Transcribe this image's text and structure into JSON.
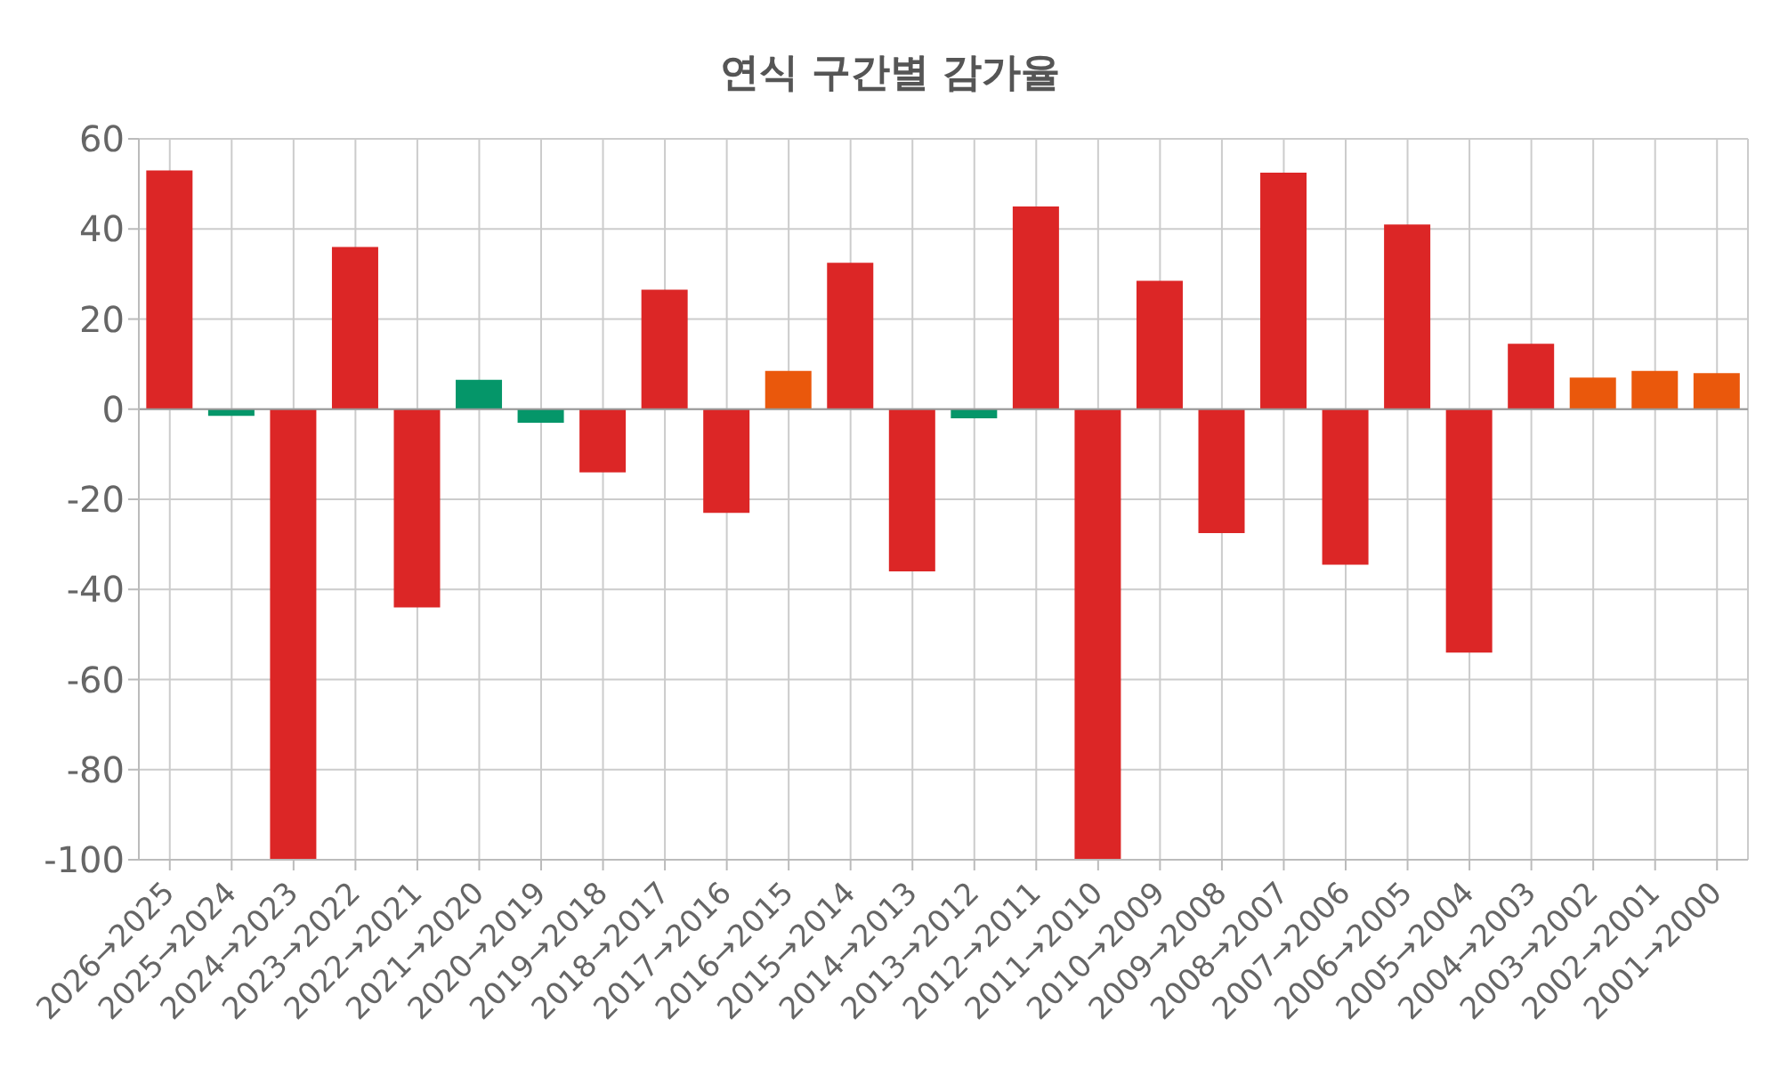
{
  "chart_data": {
    "type": "bar",
    "title": "연식 구간별 감가율",
    "categories": [
      "2026→2025",
      "2025→2024",
      "2024→2023",
      "2023→2022",
      "2022→2021",
      "2021→2020",
      "2020→2019",
      "2019→2018",
      "2018→2017",
      "2017→2016",
      "2016→2015",
      "2015→2014",
      "2014→2013",
      "2013→2012",
      "2012→2011",
      "2011→2010",
      "2010→2009",
      "2009→2008",
      "2008→2007",
      "2007→2006",
      "2006→2005",
      "2005→2004",
      "2004→2003",
      "2003→2002",
      "2002→2001",
      "2001→2000"
    ],
    "values": [
      53,
      -1.5,
      -100,
      36,
      -44,
      6.5,
      -3,
      -14,
      26.5,
      -23,
      8.5,
      32.5,
      -36,
      -2,
      45,
      -100,
      28.5,
      -27.5,
      52.5,
      -34.5,
      41,
      -54,
      14.5,
      7,
      8.5,
      8
    ],
    "colors": [
      "#dc2626",
      "#059669",
      "#dc2626",
      "#dc2626",
      "#dc2626",
      "#059669",
      "#059669",
      "#dc2626",
      "#dc2626",
      "#dc2626",
      "#ea580c",
      "#dc2626",
      "#dc2626",
      "#059669",
      "#dc2626",
      "#dc2626",
      "#dc2626",
      "#dc2626",
      "#dc2626",
      "#dc2626",
      "#dc2626",
      "#dc2626",
      "#dc2626",
      "#ea580c",
      "#ea580c",
      "#ea580c"
    ],
    "ylim": [
      -100,
      60
    ],
    "yticks": [
      -100,
      -80,
      -60,
      -40,
      -20,
      0,
      20,
      40,
      60
    ],
    "grid": true
  }
}
